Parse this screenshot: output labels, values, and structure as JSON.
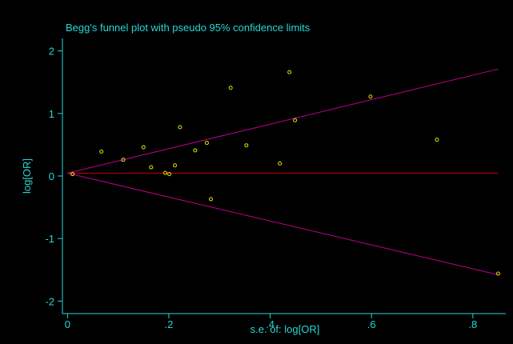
{
  "colors": {
    "background": "#000000",
    "axis": "#27d7d7",
    "text": "#27d7d7",
    "points": "#e6e600",
    "center_line": "#c00000",
    "confidence_limits": "#c00090"
  },
  "chart_data": {
    "type": "scatter",
    "title": "Begg's funnel plot with pseudo 95% confidence limits",
    "xlabel": "s.e. of: log[OR]",
    "ylabel": "log[OR]",
    "xlim": [
      -0.01,
      0.865
    ],
    "ylim": [
      -2.2,
      2.2
    ],
    "x_ticks": [
      0,
      0.2,
      0.4,
      0.6,
      0.8
    ],
    "x_tick_labels": [
      "0",
      ".2",
      ".4",
      ".6",
      ".8"
    ],
    "y_ticks": [
      -2,
      -1,
      0,
      1,
      2
    ],
    "y_tick_labels": [
      "-2",
      "-1",
      "0",
      "1",
      "2"
    ],
    "grid": false,
    "legend": "none",
    "points": [
      {
        "x": 0.01,
        "y": 0.03
      },
      {
        "x": 0.067,
        "y": 0.39
      },
      {
        "x": 0.11,
        "y": 0.26
      },
      {
        "x": 0.15,
        "y": 0.46
      },
      {
        "x": 0.165,
        "y": 0.14
      },
      {
        "x": 0.193,
        "y": 0.05
      },
      {
        "x": 0.201,
        "y": 0.03
      },
      {
        "x": 0.212,
        "y": 0.17
      },
      {
        "x": 0.222,
        "y": 0.78
      },
      {
        "x": 0.252,
        "y": 0.41
      },
      {
        "x": 0.275,
        "y": 0.53
      },
      {
        "x": 0.283,
        "y": -0.37
      },
      {
        "x": 0.322,
        "y": 1.41
      },
      {
        "x": 0.353,
        "y": 0.49
      },
      {
        "x": 0.419,
        "y": 0.2
      },
      {
        "x": 0.438,
        "y": 1.66
      },
      {
        "x": 0.449,
        "y": 0.89
      },
      {
        "x": 0.598,
        "y": 1.27
      },
      {
        "x": 0.729,
        "y": 0.58
      },
      {
        "x": 0.85,
        "y": -1.56
      }
    ],
    "center_line": {
      "y": 0.045,
      "x_range": [
        0,
        0.85
      ]
    },
    "upper_limit": {
      "x": [
        0,
        0.85
      ],
      "y": [
        0.045,
        1.71
      ]
    },
    "lower_limit": {
      "x": [
        0,
        0.85
      ],
      "y": [
        0.045,
        -1.58
      ]
    }
  }
}
